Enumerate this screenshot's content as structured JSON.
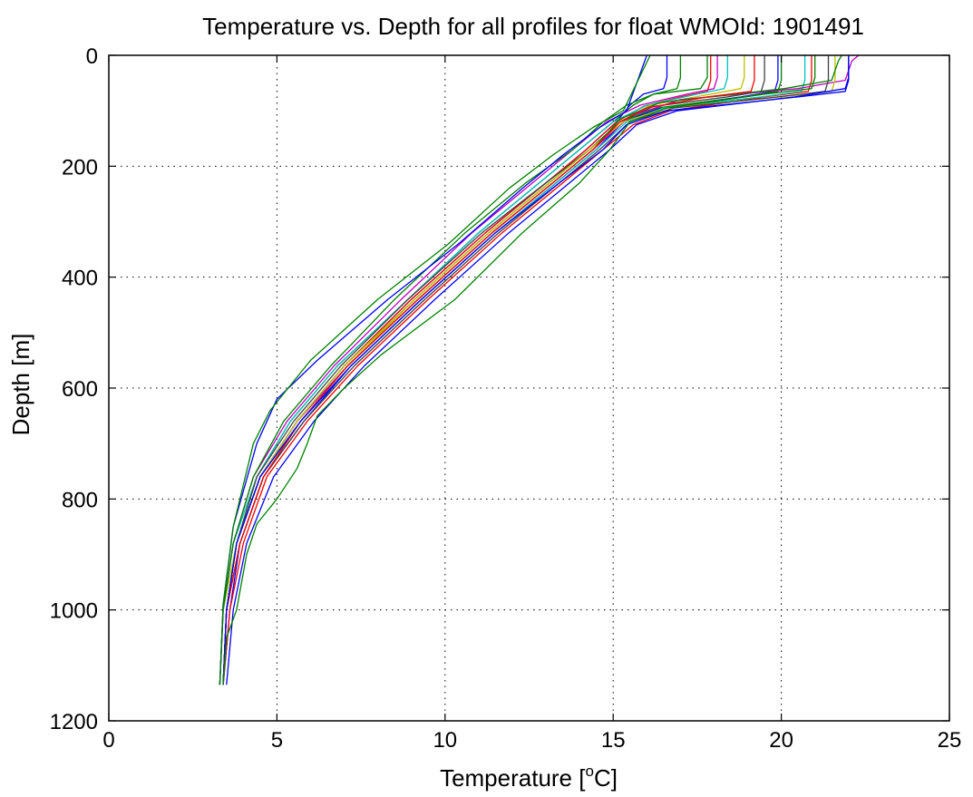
{
  "chart_data": {
    "type": "line",
    "title": "Temperature vs. Depth for all profiles for float WMOId: 1901491",
    "xlabel": {
      "pre": "Temperature [",
      "sup": "o",
      "post": "C]"
    },
    "ylabel": "Depth [m]",
    "xlim": [
      0,
      25
    ],
    "ylim": [
      0,
      1200
    ],
    "y_reversed": true,
    "grid": true,
    "grid_style": "dotted",
    "xticks": [
      0,
      5,
      10,
      15,
      20,
      25
    ],
    "yticks": [
      0,
      200,
      400,
      600,
      800,
      1000,
      1200
    ],
    "xtick_labels": [
      "0",
      "5",
      "10",
      "15",
      "20",
      "25"
    ],
    "ytick_labels": [
      "0",
      "200",
      "400",
      "600",
      "800",
      "1000",
      "1200"
    ],
    "series": [
      {
        "color": "#0000ff",
        "x": [
          16.6,
          16.6,
          16.5,
          15.9,
          15.5,
          15.1,
          14.2,
          13.0,
          11.2,
          9.0,
          7.0,
          5.6,
          4.5,
          3.8,
          3.5,
          3.4
        ],
        "y": [
          0,
          40,
          60,
          70,
          90,
          120,
          170,
          230,
          320,
          440,
          560,
          660,
          760,
          880,
          1000,
          1135
        ]
      },
      {
        "color": "#008000",
        "x": [
          17.0,
          17.0,
          16.9,
          16.2,
          15.6,
          15.0,
          14.0,
          12.8,
          11.0,
          8.9,
          6.8,
          5.4,
          4.4,
          3.8,
          3.5,
          3.4
        ],
        "y": [
          0,
          40,
          60,
          70,
          90,
          120,
          170,
          230,
          320,
          440,
          560,
          660,
          760,
          880,
          1000,
          1135
        ]
      },
      {
        "color": "#ff0000",
        "x": [
          17.9,
          17.9,
          17.8,
          17.0,
          15.9,
          15.1,
          14.2,
          13.0,
          11.2,
          9.0,
          7.0,
          5.6,
          4.5,
          3.8,
          3.5,
          3.4
        ],
        "y": [
          0,
          45,
          65,
          75,
          92,
          120,
          170,
          230,
          320,
          440,
          560,
          660,
          760,
          880,
          1000,
          1135
        ]
      },
      {
        "color": "#00bfbf",
        "x": [
          18.4,
          18.4,
          18.3,
          17.5,
          16.0,
          15.0,
          14.0,
          12.8,
          11.0,
          8.9,
          6.8,
          5.4,
          4.4,
          3.7,
          3.4,
          3.3
        ],
        "y": [
          0,
          40,
          60,
          70,
          90,
          120,
          170,
          230,
          320,
          440,
          560,
          660,
          760,
          880,
          1000,
          1135
        ]
      },
      {
        "color": "#bf00bf",
        "x": [
          18.1,
          18.1,
          18.0,
          17.2,
          15.8,
          14.8,
          13.8,
          12.6,
          10.8,
          8.7,
          6.7,
          5.3,
          4.3,
          3.7,
          3.4,
          3.3
        ],
        "y": [
          0,
          40,
          60,
          70,
          90,
          120,
          170,
          230,
          320,
          440,
          560,
          660,
          760,
          880,
          1000,
          1135
        ]
      },
      {
        "color": "#bfbf00",
        "x": [
          18.9,
          18.9,
          18.8,
          17.9,
          16.1,
          15.2,
          14.3,
          13.1,
          11.3,
          9.1,
          7.1,
          5.7,
          4.6,
          3.9,
          3.5,
          3.4
        ],
        "y": [
          0,
          40,
          60,
          70,
          90,
          120,
          170,
          230,
          320,
          440,
          560,
          660,
          760,
          880,
          1000,
          1135
        ]
      },
      {
        "color": "#404040",
        "x": [
          19.5,
          19.5,
          19.4,
          18.4,
          16.2,
          15.2,
          14.3,
          13.0,
          11.1,
          8.9,
          6.9,
          5.5,
          4.4,
          3.8,
          3.5,
          3.4
        ],
        "y": [
          0,
          45,
          65,
          75,
          92,
          120,
          170,
          230,
          320,
          440,
          560,
          660,
          760,
          880,
          1000,
          1135
        ]
      },
      {
        "color": "#0000ff",
        "x": [
          19.9,
          19.9,
          19.8,
          18.8,
          16.4,
          15.3,
          14.5,
          13.3,
          11.5,
          9.3,
          7.2,
          5.8,
          4.6,
          3.9,
          3.6,
          3.4
        ],
        "y": [
          0,
          45,
          65,
          75,
          95,
          120,
          170,
          230,
          320,
          440,
          560,
          660,
          760,
          880,
          1000,
          1135
        ]
      },
      {
        "color": "#008000",
        "x": [
          20.0,
          20.0,
          19.9,
          18.9,
          16.3,
          15.2,
          14.3,
          13.1,
          11.3,
          9.1,
          7.0,
          5.6,
          4.5,
          3.8,
          3.5,
          3.4
        ],
        "y": [
          0,
          45,
          65,
          75,
          95,
          120,
          170,
          230,
          320,
          440,
          560,
          660,
          760,
          880,
          1000,
          1135
        ]
      },
      {
        "color": "#ff0000",
        "x": [
          20.9,
          20.9,
          20.8,
          19.5,
          16.7,
          15.6,
          14.7,
          13.5,
          11.7,
          9.5,
          7.4,
          5.9,
          4.7,
          4.0,
          3.6,
          3.4
        ],
        "y": [
          0,
          45,
          65,
          75,
          100,
          125,
          170,
          230,
          320,
          440,
          560,
          660,
          760,
          880,
          1000,
          1135
        ]
      },
      {
        "color": "#00bfbf",
        "x": [
          20.7,
          20.7,
          20.6,
          19.4,
          16.5,
          15.4,
          14.5,
          13.3,
          11.5,
          9.3,
          7.2,
          5.7,
          4.6,
          3.9,
          3.5,
          3.4
        ],
        "y": [
          0,
          45,
          65,
          75,
          95,
          120,
          170,
          230,
          320,
          440,
          560,
          660,
          760,
          880,
          1000,
          1135
        ]
      },
      {
        "color": "#bf00bf",
        "x": [
          22.3,
          22.1,
          21.9,
          20.5,
          17.0,
          15.5,
          14.4,
          13.2,
          11.4,
          9.2,
          7.1,
          5.6,
          4.5,
          3.8,
          3.5,
          3.4
        ],
        "y": [
          0,
          10,
          45,
          60,
          80,
          110,
          170,
          230,
          320,
          440,
          560,
          660,
          760,
          880,
          1000,
          1135
        ]
      },
      {
        "color": "#bfbf00",
        "x": [
          21.6,
          21.6,
          21.5,
          20.0,
          16.6,
          15.3,
          14.3,
          13.1,
          11.3,
          9.1,
          7.0,
          5.6,
          4.5,
          3.8,
          3.4,
          3.3
        ],
        "y": [
          0,
          45,
          65,
          75,
          95,
          120,
          170,
          230,
          320,
          440,
          560,
          660,
          760,
          880,
          1000,
          1135
        ]
      },
      {
        "color": "#404040",
        "x": [
          21.4,
          21.4,
          21.3,
          19.9,
          16.8,
          15.5,
          14.6,
          13.4,
          11.6,
          9.4,
          7.3,
          5.8,
          4.6,
          3.9,
          3.5,
          3.4
        ],
        "y": [
          0,
          45,
          65,
          75,
          95,
          120,
          170,
          230,
          320,
          440,
          560,
          660,
          760,
          880,
          1000,
          1135
        ]
      },
      {
        "color": "#0000ff",
        "x": [
          22.0,
          22.0,
          21.9,
          20.4,
          16.9,
          15.7,
          14.9,
          13.7,
          11.9,
          9.7,
          7.6,
          6.1,
          4.9,
          4.1,
          3.7,
          3.5
        ],
        "y": [
          0,
          40,
          60,
          75,
          100,
          125,
          170,
          230,
          320,
          440,
          560,
          660,
          760,
          880,
          1000,
          1135
        ]
      },
      {
        "color": "#008000",
        "x": [
          21.8,
          21.7,
          21.5,
          20.1,
          16.4,
          15.2,
          14.4,
          13.2,
          11.4,
          9.2,
          7.1,
          5.7,
          4.5,
          3.8,
          3.5,
          3.4
        ],
        "y": [
          0,
          10,
          45,
          60,
          85,
          115,
          170,
          230,
          320,
          440,
          560,
          660,
          760,
          880,
          1000,
          1135
        ]
      },
      {
        "color": "#008000",
        "x": [
          17.8,
          17.8,
          17.6,
          16.2,
          15.4,
          14.7,
          13.8,
          12.4,
          10.6,
          8.5,
          6.6,
          5.2,
          4.3,
          3.7,
          3.4,
          3.3
        ],
        "y": [
          0,
          40,
          60,
          70,
          90,
          120,
          170,
          230,
          320,
          440,
          560,
          660,
          760,
          880,
          1000,
          1135
        ]
      },
      {
        "color": "#ff0000",
        "x": [
          19.2,
          19.2,
          19.1,
          17.8,
          16.0,
          15.2,
          14.4,
          13.2,
          11.4,
          9.2,
          7.1,
          5.7,
          4.6,
          3.9,
          3.5,
          3.4
        ],
        "y": [
          0,
          45,
          65,
          75,
          95,
          120,
          170,
          230,
          320,
          440,
          560,
          660,
          760,
          880,
          1000,
          1135
        ]
      },
      {
        "color": "#0000ff",
        "x": [
          22.0,
          22.0,
          21.9,
          20.5,
          16.6,
          15.4,
          14.7,
          13.4,
          11.5,
          9.3,
          7.2,
          5.7,
          4.5,
          3.8,
          3.5,
          3.4
        ],
        "y": [
          0,
          45,
          65,
          75,
          100,
          125,
          170,
          230,
          320,
          440,
          560,
          660,
          760,
          880,
          1000,
          1135
        ]
      },
      {
        "color": "#008000",
        "x": [
          21.0,
          21.0,
          20.9,
          19.5,
          16.6,
          15.5,
          14.9,
          14.0,
          12.3,
          10.3,
          8.1,
          7.0,
          6.2,
          5.9,
          5.6,
          5.0,
          4.4,
          4.1,
          3.8,
          3.5,
          3.4
        ],
        "y": [
          0,
          40,
          60,
          70,
          95,
          120,
          170,
          230,
          320,
          440,
          540,
          600,
          650,
          700,
          745,
          800,
          845,
          900,
          1000,
          1050,
          1135
        ]
      },
      {
        "color": "#0000ff",
        "x": [
          16.0,
          15.4,
          14.6,
          13.5,
          12.3,
          10.4,
          8.3,
          6.2,
          5.0,
          4.4,
          3.7,
          3.4,
          3.3
        ],
        "y": [
          0,
          100,
          130,
          180,
          240,
          340,
          440,
          550,
          620,
          700,
          850,
          990,
          1135
        ]
      },
      {
        "color": "#008000",
        "x": [
          16.1,
          15.3,
          14.4,
          13.2,
          11.9,
          10.1,
          8.0,
          6.0,
          4.8,
          4.3,
          3.7,
          3.4,
          3.3
        ],
        "y": [
          0,
          100,
          130,
          180,
          240,
          340,
          440,
          550,
          640,
          700,
          850,
          990,
          1135
        ]
      }
    ]
  }
}
